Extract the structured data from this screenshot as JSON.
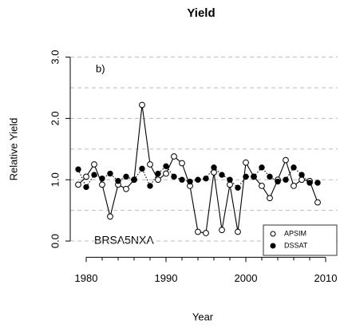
{
  "chart_data": {
    "type": "line",
    "title": "Yield",
    "x_label": "Year",
    "y_label": "Relative Yield",
    "annotations": [
      "b)",
      "BRSA5NXA"
    ],
    "x": [
      1979,
      1980,
      1981,
      1982,
      1983,
      1984,
      1985,
      1986,
      1987,
      1988,
      1989,
      1990,
      1991,
      1992,
      1993,
      1994,
      1995,
      1996,
      1997,
      1998,
      1999,
      2000,
      2001,
      2002,
      2003,
      2004,
      2005,
      2006,
      2007,
      2008,
      2009
    ],
    "series": [
      {
        "name": "APSIM",
        "color": "#000000",
        "marker": "open-circle",
        "line": "solid",
        "values": [
          0.92,
          1.05,
          1.25,
          0.92,
          0.4,
          0.92,
          0.85,
          1.0,
          2.22,
          1.25,
          1.0,
          1.1,
          1.38,
          1.27,
          0.9,
          0.15,
          0.13,
          1.12,
          0.18,
          0.92,
          0.15,
          1.28,
          1.05,
          0.9,
          0.7,
          1.0,
          1.32,
          0.9,
          1.0,
          0.98,
          0.63
        ]
      },
      {
        "name": "DSSAT",
        "color": "#000000",
        "marker": "filled-circle",
        "line": "dotted",
        "values": [
          1.17,
          0.88,
          1.08,
          1.02,
          1.1,
          0.98,
          1.05,
          1.0,
          1.18,
          0.9,
          1.1,
          1.22,
          1.05,
          1.0,
          0.97,
          1.0,
          1.02,
          1.2,
          1.08,
          1.0,
          0.87,
          1.05,
          1.05,
          1.2,
          1.05,
          0.97,
          1.0,
          1.2,
          1.08,
          0.95,
          0.95
        ]
      }
    ],
    "xlim": [
      1978,
      2011.5
    ],
    "xticks": [
      1980,
      1990,
      2000,
      2010
    ],
    "ylim": [
      -0.2,
      3.2
    ],
    "yticks": [
      {
        "value": 0,
        "label": "0.0"
      },
      {
        "value": 1,
        "label": "1.0"
      },
      {
        "value": 2,
        "label": "2.0"
      },
      {
        "value": 3,
        "label": "3.0"
      }
    ],
    "grid_lines": [
      0,
      0.5,
      1,
      1.5,
      2,
      2.5,
      3
    ],
    "legend": "bottom-right"
  }
}
